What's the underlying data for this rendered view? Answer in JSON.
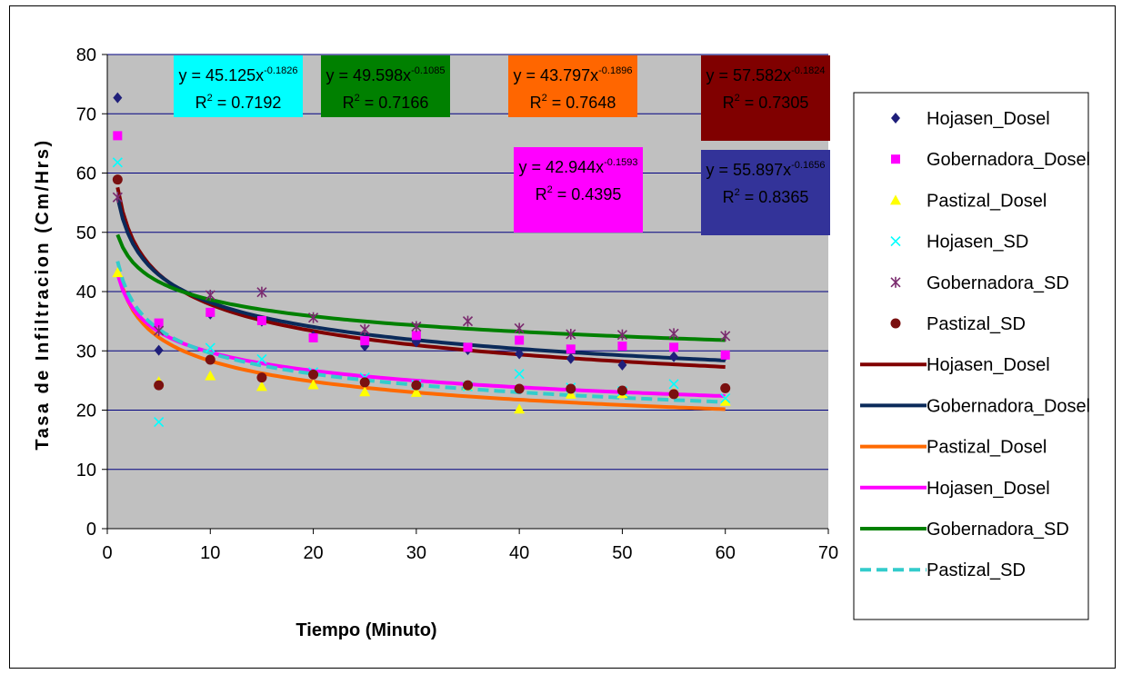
{
  "chart_data": {
    "type": "scatter",
    "title": "",
    "xlabel": "Tiempo (Minuto)",
    "ylabel": "Tasa de Infiltracion (Cm/Hrs)",
    "xlim": [
      0,
      70
    ],
    "ylim": [
      0,
      80
    ],
    "xticks": [
      0,
      10,
      20,
      30,
      40,
      50,
      60,
      70
    ],
    "yticks": [
      0,
      10,
      20,
      30,
      40,
      50,
      60,
      70,
      80
    ],
    "grid": "horizontal",
    "plot_background": "#c0c0c0",
    "legend_position": "right",
    "series": [
      {
        "name": "Hojasen_Dosel",
        "marker": "diamond",
        "color": "#1f1f7a",
        "x": [
          1,
          5,
          10,
          15,
          20,
          25,
          30,
          35,
          40,
          45,
          50,
          55,
          60
        ],
        "y": [
          72.7,
          30.1,
          36.2,
          35.0,
          32.5,
          30.8,
          31.5,
          30.2,
          29.5,
          28.7,
          27.6,
          29.0,
          29.2
        ]
      },
      {
        "name": "Gobernadora_Dosel",
        "marker": "square",
        "color": "#ff00ff",
        "x": [
          1,
          5,
          10,
          15,
          20,
          25,
          30,
          35,
          40,
          45,
          50,
          55,
          60
        ],
        "y": [
          66.3,
          34.7,
          36.5,
          35.1,
          32.2,
          31.7,
          32.6,
          30.6,
          31.8,
          30.3,
          30.8,
          30.6,
          29.3
        ]
      },
      {
        "name": "Pastizal_Dosel",
        "marker": "triangle",
        "color": "#ffff00",
        "x": [
          1,
          5,
          10,
          15,
          20,
          25,
          30,
          35,
          40,
          45,
          50,
          55,
          60
        ],
        "y": [
          43.2,
          24.8,
          25.8,
          24.0,
          24.3,
          23.1,
          23.0,
          24.1,
          20.2,
          22.7,
          22.8,
          22.9,
          21.5
        ]
      },
      {
        "name": "Hojasen_SD",
        "marker": "x",
        "color": "#00ffff",
        "x": [
          1,
          5,
          10,
          15,
          20,
          25,
          30,
          35,
          40,
          45,
          50,
          55,
          60
        ],
        "y": [
          61.8,
          18.0,
          30.5,
          28.6,
          26.4,
          25.5,
          24.3,
          24.0,
          26.1,
          23.8,
          23.2,
          24.4,
          22.0
        ]
      },
      {
        "name": "Gobernadora_SD",
        "marker": "asterisk",
        "color": "#7a2a6e",
        "x": [
          1,
          5,
          10,
          15,
          20,
          25,
          30,
          35,
          40,
          45,
          50,
          55,
          60
        ],
        "y": [
          55.9,
          33.4,
          39.4,
          39.9,
          35.6,
          33.6,
          34.1,
          35.0,
          33.8,
          32.8,
          32.7,
          32.9,
          32.5
        ]
      },
      {
        "name": "Pastizal_SD",
        "marker": "circle",
        "color": "#7a1010",
        "x": [
          1,
          5,
          10,
          15,
          20,
          25,
          30,
          35,
          40,
          45,
          50,
          55,
          60
        ],
        "y": [
          58.9,
          24.2,
          28.5,
          25.5,
          26.0,
          24.7,
          24.2,
          24.2,
          23.6,
          23.6,
          23.3,
          22.7,
          23.7
        ]
      }
    ],
    "trendlines": [
      {
        "name": "Hojasen_Dosel",
        "color": "#800000",
        "a": 57.582,
        "b": -0.1824,
        "dashed": false
      },
      {
        "name": "Gobernadora_Dosel",
        "color": "#0b2a5a",
        "a": 55.897,
        "b": -0.1656,
        "dashed": false
      },
      {
        "name": "Pastizal_Dosel",
        "color": "#ff6a00",
        "a": 43.797,
        "b": -0.1896,
        "dashed": false
      },
      {
        "name": "Hojasen_Dosel",
        "color": "#ff00ff",
        "a": 42.944,
        "b": -0.1593,
        "dashed": false
      },
      {
        "name": "Gobernadora_SD",
        "color": "#008000",
        "a": 49.598,
        "b": -0.1085,
        "dashed": false
      },
      {
        "name": "Pastizal_SD",
        "color": "#33cccc",
        "a": 45.125,
        "b": -0.1826,
        "dashed": true
      }
    ],
    "equations": [
      {
        "prefix": "y = 45.125x",
        "exp": "-0.1826",
        "r2": "= 0.7192",
        "bg": "#00ffff"
      },
      {
        "prefix": "y = 49.598x",
        "exp": "-0.1085",
        "r2": "= 0.7166",
        "bg": "#008000"
      },
      {
        "prefix": "y = 43.797x",
        "exp": "-0.1896",
        "r2": "= 0.7648",
        "bg": "#ff6600"
      },
      {
        "prefix": "y = 57.582x",
        "exp": "-0.1824",
        "r2": "= 0.7305",
        "bg": "#800000"
      },
      {
        "prefix": "y = 42.944x",
        "exp": "-0.1593",
        "r2": "= 0.4395",
        "bg": "#ff00ff"
      },
      {
        "prefix": "y = 55.897x",
        "exp": "-0.1656",
        "r2": "= 0.8365",
        "bg": "#333399"
      }
    ]
  }
}
